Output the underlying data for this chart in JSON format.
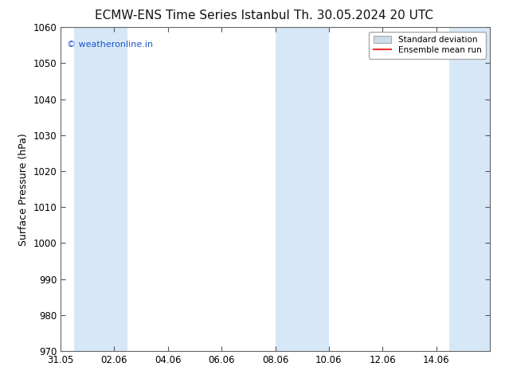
{
  "title_left": "ECMW-ENS Time Series Istanbul",
  "title_right": "Th. 30.05.2024 20 UTC",
  "ylabel": "Surface Pressure (hPa)",
  "ylim": [
    970,
    1060
  ],
  "yticks": [
    970,
    980,
    990,
    1000,
    1010,
    1020,
    1030,
    1040,
    1050,
    1060
  ],
  "xlim_start": 0.0,
  "xlim_end": 16.0,
  "xtick_labels": [
    "31.05",
    "02.06",
    "04.06",
    "06.06",
    "08.06",
    "10.06",
    "12.06",
    "14.06"
  ],
  "xtick_positions": [
    0,
    2,
    4,
    6,
    8,
    10,
    12,
    14
  ],
  "shaded_bands": [
    {
      "x_start": 0.5,
      "x_end": 2.5
    },
    {
      "x_start": 8.0,
      "x_end": 10.0
    },
    {
      "x_start": 14.5,
      "x_end": 16.0
    }
  ],
  "shade_color": "#d6e8f7",
  "background_color": "#ffffff",
  "watermark_text": "© weatheronline.in",
  "watermark_color": "#1a55cc",
  "legend_std_color": "#ccdded",
  "legend_mean_color": "#ee3333",
  "title_fontsize": 11,
  "label_fontsize": 9,
  "tick_fontsize": 8.5
}
